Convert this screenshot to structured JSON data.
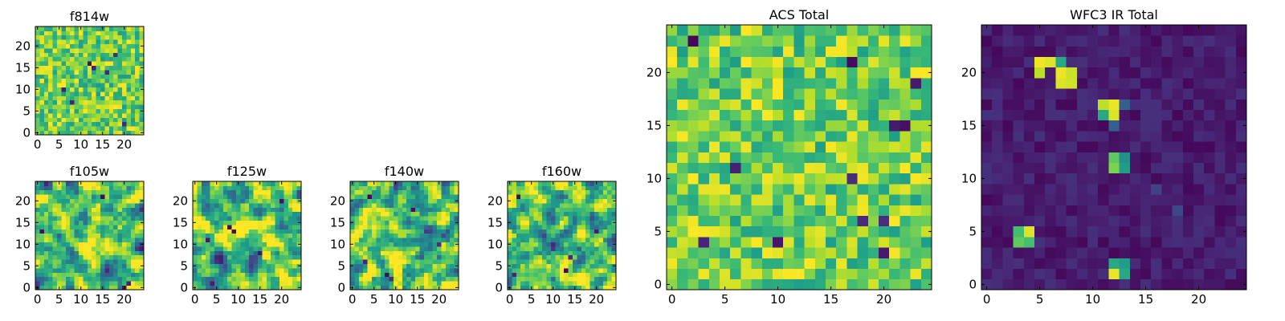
{
  "chart_data": [
    {
      "type": "heatmap",
      "title": "f814w",
      "pattern": "noise",
      "grid_size": [
        25,
        25
      ],
      "xticks": [
        0,
        5,
        10,
        15,
        20
      ],
      "yticks": [
        0,
        5,
        10,
        15,
        20
      ],
      "origin": "lower",
      "colormap": "viridis",
      "dark_cells": [
        [
          12,
          16
        ],
        [
          13,
          15
        ],
        [
          16,
          14
        ],
        [
          6,
          10
        ],
        [
          20,
          2
        ],
        [
          8,
          7
        ],
        [
          18,
          18
        ]
      ]
    },
    {
      "type": "heatmap",
      "title": "f105w",
      "pattern": "smooth",
      "grid_size": [
        25,
        25
      ],
      "xticks": [
        0,
        5,
        10,
        15,
        20
      ],
      "yticks": [
        0,
        5,
        10,
        15,
        20
      ],
      "origin": "lower",
      "colormap": "viridis",
      "dark_cells": [
        [
          1,
          13
        ],
        [
          20,
          0
        ],
        [
          21,
          1
        ],
        [
          15,
          21
        ]
      ]
    },
    {
      "type": "heatmap",
      "title": "f125w",
      "pattern": "smooth",
      "grid_size": [
        25,
        25
      ],
      "xticks": [
        0,
        5,
        10,
        15,
        20
      ],
      "yticks": [
        0,
        5,
        10,
        15,
        20
      ],
      "origin": "lower",
      "colormap": "viridis",
      "dark_cells": [
        [
          8,
          14
        ],
        [
          9,
          13
        ],
        [
          3,
          11
        ],
        [
          4,
          1
        ],
        [
          20,
          20
        ],
        [
          15,
          8
        ]
      ]
    },
    {
      "type": "heatmap",
      "title": "f140w",
      "pattern": "smooth",
      "grid_size": [
        25,
        25
      ],
      "xticks": [
        0,
        5,
        10,
        15,
        20
      ],
      "yticks": [
        0,
        5,
        10,
        15,
        20
      ],
      "origin": "lower",
      "colormap": "viridis",
      "dark_cells": [
        [
          8,
          3
        ],
        [
          9,
          2
        ],
        [
          14,
          18
        ],
        [
          4,
          21
        ],
        [
          20,
          10
        ],
        [
          3,
          6
        ]
      ]
    },
    {
      "type": "heatmap",
      "title": "f160w",
      "pattern": "smooth",
      "grid_size": [
        25,
        25
      ],
      "xticks": [
        0,
        5,
        10,
        15,
        20
      ],
      "yticks": [
        0,
        5,
        10,
        15,
        20
      ],
      "origin": "lower",
      "colormap": "viridis",
      "dark_cells": [
        [
          2,
          21
        ],
        [
          14,
          7
        ],
        [
          13,
          4
        ],
        [
          20,
          13
        ],
        [
          1,
          3
        ]
      ]
    },
    {
      "type": "heatmap",
      "title": "ACS Total",
      "pattern": "noise",
      "grid_size": [
        25,
        25
      ],
      "xticks": [
        0,
        5,
        10,
        15,
        20
      ],
      "yticks": [
        0,
        5,
        10,
        15,
        20
      ],
      "origin": "lower",
      "colormap": "viridis",
      "dark_cells": [
        [
          2,
          23
        ],
        [
          6,
          11
        ],
        [
          18,
          6
        ],
        [
          20,
          6
        ],
        [
          20,
          3
        ],
        [
          10,
          4
        ],
        [
          21,
          15
        ],
        [
          22,
          15
        ],
        [
          23,
          19
        ],
        [
          17,
          21
        ],
        [
          17,
          10
        ],
        [
          3,
          4
        ]
      ]
    },
    {
      "type": "heatmap",
      "title": "WFC3 IR Total",
      "pattern": "sources",
      "grid_size": [
        25,
        25
      ],
      "xticks": [
        0,
        5,
        10,
        15,
        20
      ],
      "yticks": [
        0,
        5,
        10,
        15,
        20
      ],
      "origin": "lower",
      "colormap": "viridis",
      "sources": [
        {
          "x": 5,
          "y": 21,
          "level": 0.98
        },
        {
          "x": 6,
          "y": 21,
          "level": 0.95
        },
        {
          "x": 5,
          "y": 20,
          "level": 0.9
        },
        {
          "x": 7,
          "y": 21,
          "level": 0.6
        },
        {
          "x": 7,
          "y": 20,
          "level": 0.97
        },
        {
          "x": 8,
          "y": 20,
          "level": 0.92
        },
        {
          "x": 7,
          "y": 19,
          "level": 0.95
        },
        {
          "x": 8,
          "y": 19,
          "level": 0.93
        },
        {
          "x": 11,
          "y": 17,
          "level": 0.9
        },
        {
          "x": 12,
          "y": 17,
          "level": 0.97
        },
        {
          "x": 12,
          "y": 16,
          "level": 0.95
        },
        {
          "x": 11,
          "y": 16,
          "level": 0.6
        },
        {
          "x": 13,
          "y": 17,
          "level": 0.3
        },
        {
          "x": 12,
          "y": 15,
          "level": 0.3
        },
        {
          "x": 12,
          "y": 12,
          "level": 0.75
        },
        {
          "x": 12,
          "y": 11,
          "level": 0.8
        },
        {
          "x": 13,
          "y": 12,
          "level": 0.5
        },
        {
          "x": 13,
          "y": 11,
          "level": 0.55
        },
        {
          "x": 3,
          "y": 5,
          "level": 0.7
        },
        {
          "x": 4,
          "y": 5,
          "level": 0.95
        },
        {
          "x": 3,
          "y": 4,
          "level": 0.75
        },
        {
          "x": 4,
          "y": 4,
          "level": 0.7
        },
        {
          "x": 12,
          "y": 2,
          "level": 0.6
        },
        {
          "x": 13,
          "y": 2,
          "level": 0.55
        },
        {
          "x": 12,
          "y": 1,
          "level": 0.97
        },
        {
          "x": 13,
          "y": 1,
          "level": 0.6
        },
        {
          "x": 18,
          "y": 7,
          "level": 0.22
        },
        {
          "x": 16,
          "y": 9,
          "level": 0.2
        }
      ]
    }
  ]
}
